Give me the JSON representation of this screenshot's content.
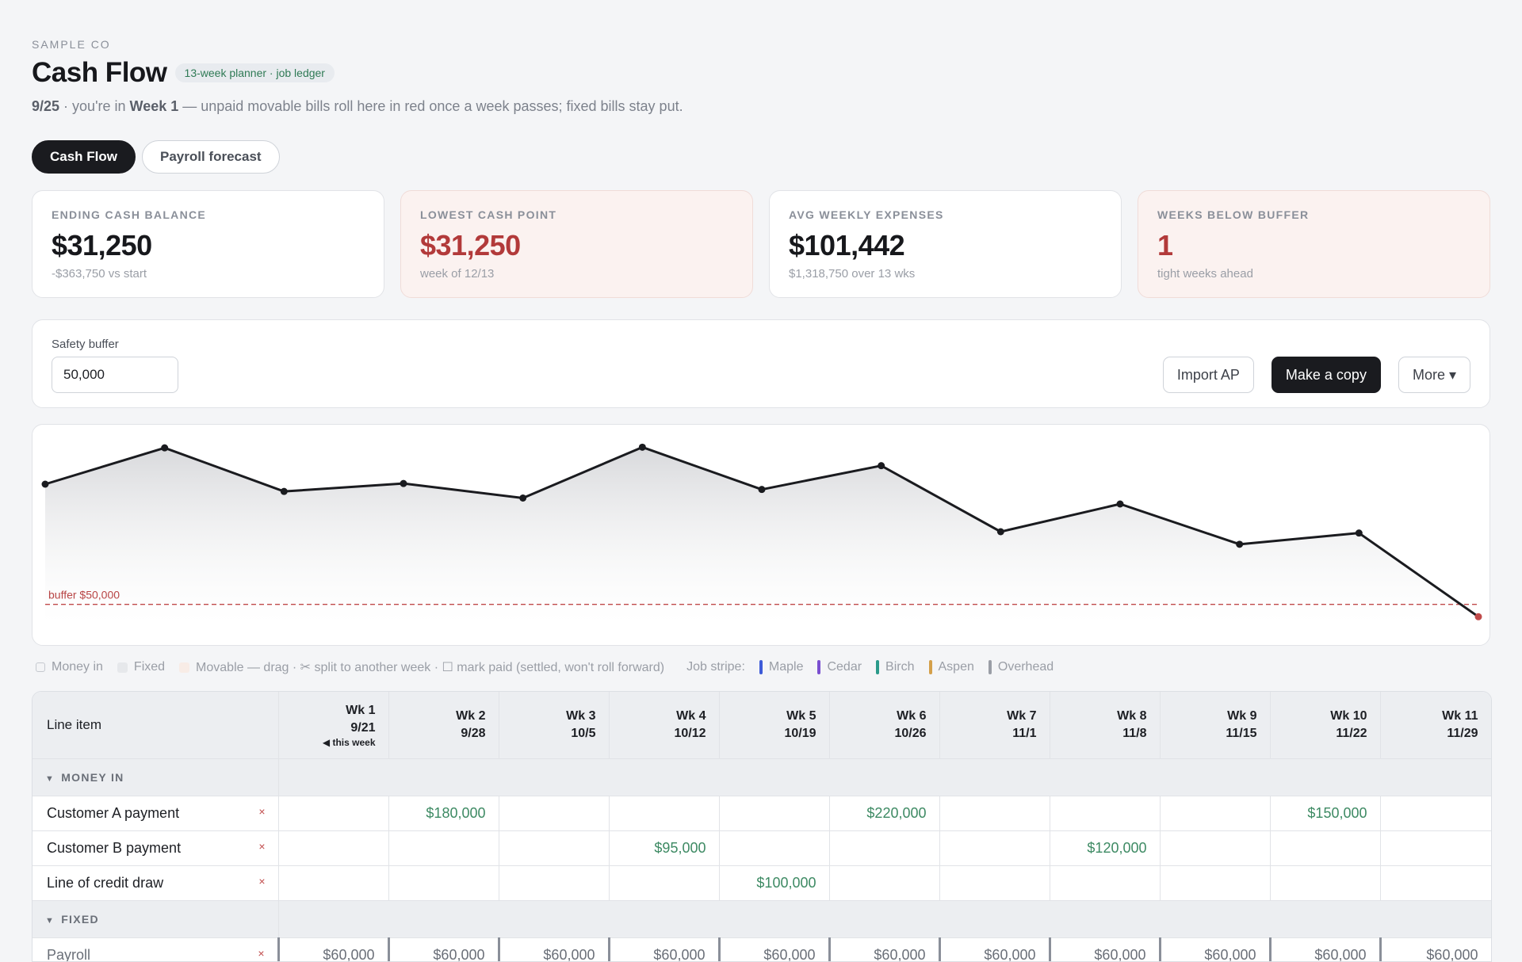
{
  "header": {
    "company": "SAMPLE CO",
    "title": "Cash Flow",
    "tag": "13-week planner · job ledger",
    "date": "9/25",
    "you_are_in": " · you're in ",
    "week": "Week 1",
    "note": " — unpaid movable bills roll here in red once a week passes; fixed bills stay put."
  },
  "tabs": [
    {
      "label": "Cash Flow",
      "active": true
    },
    {
      "label": "Payroll forecast",
      "active": false
    }
  ],
  "kpis": [
    {
      "label": "ENDING CASH BALANCE",
      "value": "$31,250",
      "sub": "-$363,750 vs start",
      "warn": false
    },
    {
      "label": "LOWEST CASH POINT",
      "value": "$31,250",
      "sub": "week of 12/13",
      "warn": true
    },
    {
      "label": "AVG WEEKLY EXPENSES",
      "value": "$101,442",
      "sub": "$1,318,750 over 13 wks",
      "warn": false
    },
    {
      "label": "WEEKS BELOW BUFFER",
      "value": "1",
      "sub": "tight weeks ahead",
      "warn": true
    }
  ],
  "controls": {
    "buffer_label": "Safety buffer",
    "buffer_value": "50,000",
    "import_label": "Import AP",
    "copy_label": "Make a copy",
    "more_label": "More ▾"
  },
  "chart_data": {
    "type": "area",
    "buffer_label": "buffer $50,000",
    "buffer": 50000,
    "series": [
      {
        "values": [
          232000,
          287000,
          221000,
          233000,
          211000,
          288000,
          224000,
          260000,
          160000,
          202000,
          141000,
          158000,
          31250
        ]
      }
    ],
    "colors": {
      "line": "#1a1b1f",
      "buffer": "#c04a4a",
      "fill": "#d9dadd"
    },
    "grid": false
  },
  "legend": {
    "money_in": "Money in",
    "fixed": "Fixed",
    "movable": "Movable — drag · ✂ split to another week · ☐ mark paid (settled, won't roll forward)",
    "job_stripe": "Job stripe:",
    "jobs": [
      {
        "name": "Maple",
        "color": "#3d5bd8"
      },
      {
        "name": "Cedar",
        "color": "#7a4fd0"
      },
      {
        "name": "Birch",
        "color": "#2a9a8a"
      },
      {
        "name": "Aspen",
        "color": "#d4a04a"
      },
      {
        "name": "Overhead",
        "color": "#9a9ea6"
      }
    ]
  },
  "table": {
    "first_header": "Line item",
    "this_week": "◀ this week",
    "weeks": [
      {
        "wk": "Wk 1",
        "date": "9/21"
      },
      {
        "wk": "Wk 2",
        "date": "9/28"
      },
      {
        "wk": "Wk 3",
        "date": "10/5"
      },
      {
        "wk": "Wk 4",
        "date": "10/12"
      },
      {
        "wk": "Wk 5",
        "date": "10/19"
      },
      {
        "wk": "Wk 6",
        "date": "10/26"
      },
      {
        "wk": "Wk 7",
        "date": "11/1"
      },
      {
        "wk": "Wk 8",
        "date": "11/8"
      },
      {
        "wk": "Wk 9",
        "date": "11/15"
      },
      {
        "wk": "Wk 10",
        "date": "11/22"
      },
      {
        "wk": "Wk 11",
        "date": "11/29"
      }
    ],
    "money_in_label": "MONEY IN",
    "fixed_label": "FIXED",
    "money_in_rows": [
      {
        "name": "Customer A payment",
        "values": [
          "",
          "$180,000",
          "",
          "",
          "",
          "$220,000",
          "",
          "",
          "",
          "$150,000",
          ""
        ]
      },
      {
        "name": "Customer B payment",
        "values": [
          "",
          "",
          "",
          "$95,000",
          "",
          "",
          "",
          "$120,000",
          "",
          "",
          ""
        ]
      },
      {
        "name": "Line of credit draw",
        "values": [
          "",
          "",
          "",
          "",
          "$100,000",
          "",
          "",
          "",
          "",
          "",
          ""
        ]
      }
    ],
    "fixed_rows": [
      {
        "name": "Payroll",
        "values": [
          "$60,000",
          "$60,000",
          "$60,000",
          "$60,000",
          "$60,000",
          "$60,000",
          "$60,000",
          "$60,000",
          "$60,000",
          "$60,000",
          "$60,000"
        ]
      }
    ],
    "remove_glyph": "×"
  }
}
